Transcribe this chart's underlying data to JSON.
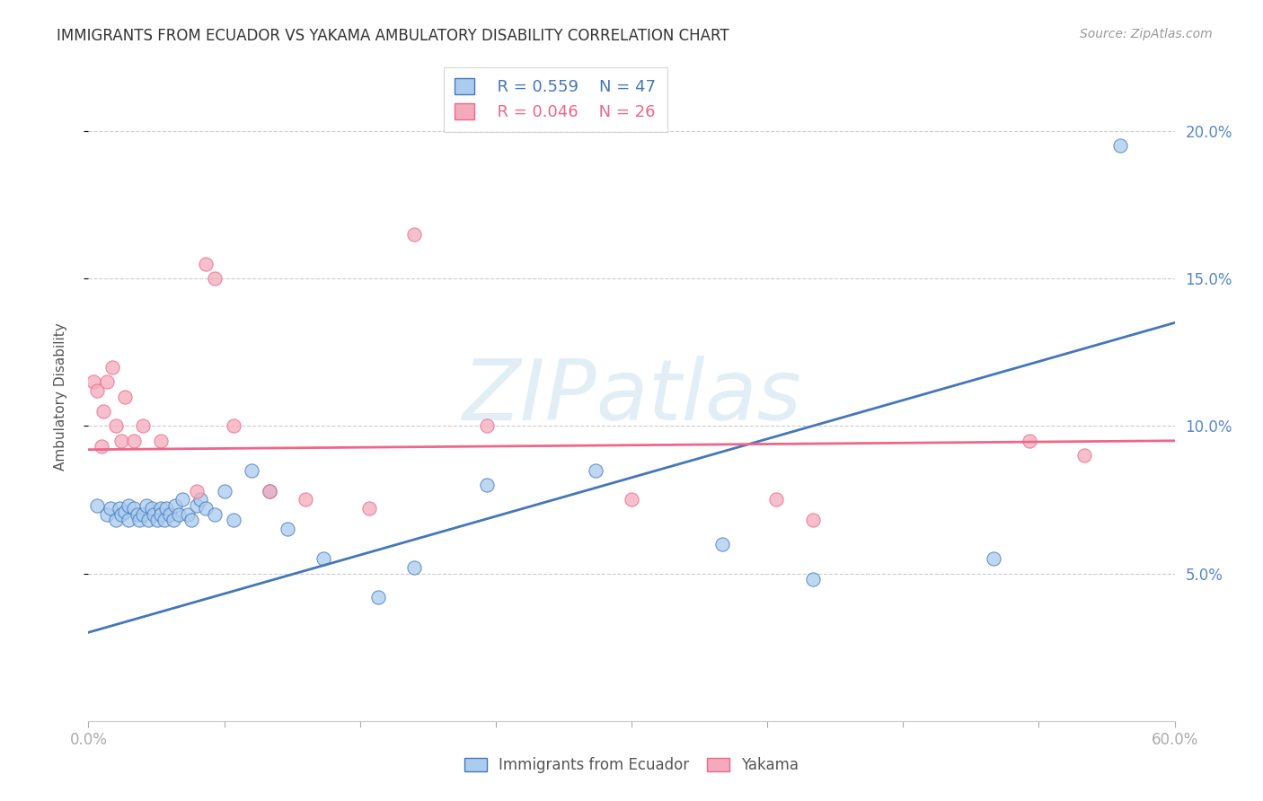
{
  "title": "IMMIGRANTS FROM ECUADOR VS YAKAMA AMBULATORY DISABILITY CORRELATION CHART",
  "source": "Source: ZipAtlas.com",
  "ylabel": "Ambulatory Disability",
  "xlim": [
    0.0,
    0.6
  ],
  "ylim": [
    0.0,
    0.22
  ],
  "yticks": [
    0.05,
    0.1,
    0.15,
    0.2
  ],
  "ytick_labels": [
    "5.0%",
    "10.0%",
    "15.0%",
    "20.0%"
  ],
  "xticks": [
    0.0,
    0.075,
    0.15,
    0.225,
    0.3,
    0.375,
    0.45,
    0.525,
    0.6
  ],
  "legend_r1": "R = 0.559",
  "legend_n1": "N = 47",
  "legend_r2": "R = 0.046",
  "legend_n2": "N = 26",
  "blue_color": "#aaccee",
  "pink_color": "#f4aabc",
  "blue_line_color": "#4477bb",
  "pink_line_color": "#ee6688",
  "watermark_text": "ZIPatlas",
  "blue_scatter_x": [
    0.005,
    0.01,
    0.012,
    0.015,
    0.017,
    0.018,
    0.02,
    0.022,
    0.022,
    0.025,
    0.027,
    0.028,
    0.03,
    0.032,
    0.033,
    0.035,
    0.036,
    0.038,
    0.04,
    0.04,
    0.042,
    0.043,
    0.045,
    0.047,
    0.048,
    0.05,
    0.052,
    0.055,
    0.057,
    0.06,
    0.062,
    0.065,
    0.07,
    0.075,
    0.08,
    0.09,
    0.1,
    0.11,
    0.13,
    0.16,
    0.18,
    0.22,
    0.28,
    0.35,
    0.4,
    0.5,
    0.57
  ],
  "blue_scatter_y": [
    0.073,
    0.07,
    0.072,
    0.068,
    0.072,
    0.07,
    0.071,
    0.073,
    0.068,
    0.072,
    0.07,
    0.068,
    0.07,
    0.073,
    0.068,
    0.072,
    0.07,
    0.068,
    0.072,
    0.07,
    0.068,
    0.072,
    0.07,
    0.068,
    0.073,
    0.07,
    0.075,
    0.07,
    0.068,
    0.073,
    0.075,
    0.072,
    0.07,
    0.078,
    0.068,
    0.085,
    0.078,
    0.065,
    0.055,
    0.042,
    0.052,
    0.08,
    0.085,
    0.06,
    0.048,
    0.055,
    0.195
  ],
  "pink_scatter_x": [
    0.003,
    0.005,
    0.007,
    0.008,
    0.01,
    0.013,
    0.015,
    0.018,
    0.02,
    0.025,
    0.03,
    0.04,
    0.06,
    0.065,
    0.07,
    0.08,
    0.1,
    0.12,
    0.155,
    0.18,
    0.22,
    0.3,
    0.4,
    0.52,
    0.55,
    0.38
  ],
  "pink_scatter_y": [
    0.115,
    0.112,
    0.093,
    0.105,
    0.115,
    0.12,
    0.1,
    0.095,
    0.11,
    0.095,
    0.1,
    0.095,
    0.078,
    0.155,
    0.15,
    0.1,
    0.078,
    0.075,
    0.072,
    0.165,
    0.1,
    0.075,
    0.068,
    0.095,
    0.09,
    0.075
  ],
  "blue_line_x": [
    0.0,
    0.6
  ],
  "blue_line_y": [
    0.03,
    0.135
  ],
  "pink_line_x": [
    0.0,
    0.6
  ],
  "pink_line_y": [
    0.092,
    0.095
  ]
}
